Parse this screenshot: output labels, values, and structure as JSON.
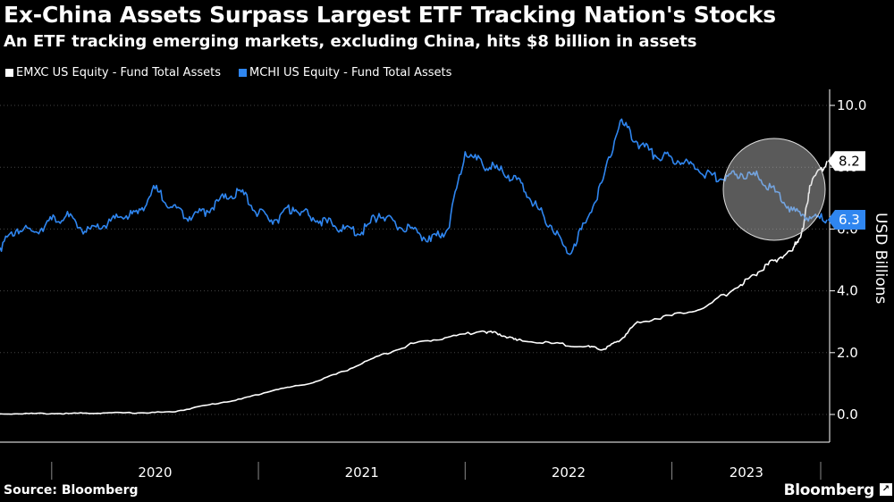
{
  "header": {
    "title": "Ex-China Assets Surpass Largest ETF Tracking Nation's Stocks",
    "subtitle": "An ETF tracking emerging markets, excluding China, hits $8 billion in assets"
  },
  "footer": {
    "source": "Source: Bloomberg",
    "logo": "Bloomberg"
  },
  "colors": {
    "background": "#000000",
    "emxc": "#ffffff",
    "mchi": "#2f86f0",
    "grid": "#444444",
    "highlight_circle": "#c8c8c8"
  },
  "chart_data": {
    "type": "line",
    "title": "Ex-China Assets Surpass Largest ETF Tracking Nation's Stocks",
    "subtitle": "An ETF tracking emerging markets, excluding China, hits $8 billion in assets",
    "ylabel": "USD Billions",
    "ylim": [
      0,
      10
    ],
    "yticks": [
      "0.0",
      "2.0",
      "4.0",
      "6.0",
      "8.0",
      "10.0"
    ],
    "xticks": [
      "2020",
      "2021",
      "2022",
      "2023"
    ],
    "xlim": [
      "2019-10",
      "2023-10"
    ],
    "grid": "horizontal dotted",
    "legend_position": "top-left",
    "annotation": "highlight circle around late-2023 crossover",
    "series": [
      {
        "name": "EMXC US Equity - Fund Total Assets",
        "color": "#ffffff",
        "end_label": "8.2",
        "x": [
          "2019-10",
          "2019-12",
          "2020-02",
          "2020-04",
          "2020-06",
          "2020-08",
          "2020-10",
          "2020-12",
          "2021-02",
          "2021-04",
          "2021-06",
          "2021-08",
          "2021-10",
          "2021-12",
          "2022-02",
          "2022-03",
          "2022-04",
          "2022-06",
          "2022-08",
          "2022-09",
          "2022-10",
          "2022-11",
          "2023-01",
          "2023-03",
          "2023-05",
          "2023-06",
          "2023-07",
          "2023-08",
          "2023-08-20",
          "2023-09",
          "2023-10"
        ],
        "values": [
          0.02,
          0.03,
          0.03,
          0.05,
          0.05,
          0.08,
          0.3,
          0.5,
          0.8,
          1.0,
          1.4,
          1.9,
          2.3,
          2.5,
          2.7,
          2.6,
          2.4,
          2.3,
          2.2,
          2.1,
          2.4,
          3.0,
          3.2,
          3.5,
          4.2,
          4.6,
          5.0,
          5.3,
          6.0,
          7.4,
          8.2
        ]
      },
      {
        "name": "MCHI US Equity - Fund Total Assets",
        "color": "#2f86f0",
        "end_label": "6.3",
        "x": [
          "2019-10",
          "2019-11",
          "2019-12",
          "2020-01",
          "2020-02",
          "2020-03",
          "2020-04",
          "2020-05",
          "2020-06",
          "2020-07",
          "2020-08",
          "2020-09",
          "2020-10",
          "2020-11",
          "2020-12",
          "2021-01",
          "2021-02",
          "2021-03",
          "2021-04",
          "2021-05",
          "2021-06",
          "2021-07",
          "2021-08",
          "2021-09",
          "2021-10",
          "2021-11",
          "2021-12",
          "2022-01",
          "2022-02",
          "2022-03",
          "2022-04",
          "2022-05",
          "2022-06",
          "2022-07",
          "2022-08",
          "2022-09",
          "2022-10",
          "2022-11",
          "2022-12",
          "2023-01",
          "2023-02",
          "2023-03",
          "2023-04",
          "2023-05",
          "2023-06",
          "2023-07",
          "2023-08",
          "2023-09",
          "2023-10"
        ],
        "values": [
          5.4,
          6.0,
          5.9,
          6.3,
          6.4,
          5.9,
          6.1,
          6.4,
          6.5,
          7.3,
          6.7,
          6.4,
          6.6,
          7.0,
          7.2,
          6.5,
          6.3,
          6.7,
          6.4,
          6.2,
          6.0,
          5.9,
          6.5,
          6.1,
          6.0,
          5.6,
          6.0,
          8.5,
          8.1,
          7.9,
          7.6,
          6.8,
          6.1,
          5.2,
          6.2,
          7.6,
          9.5,
          8.8,
          8.4,
          8.3,
          8.1,
          7.8,
          7.6,
          7.8,
          7.7,
          7.2,
          6.6,
          6.4,
          6.3
        ]
      }
    ]
  }
}
